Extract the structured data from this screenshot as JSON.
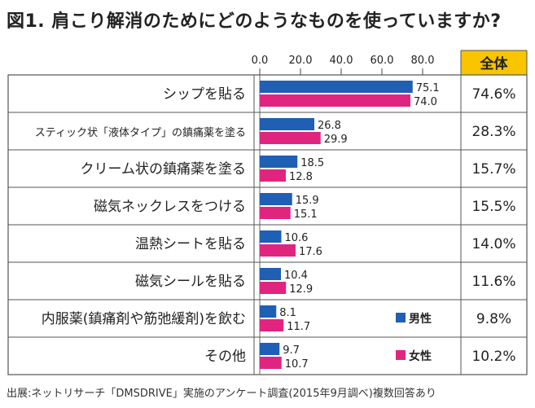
{
  "title": "図1. 肩こり解消のためにどのようなものを使っていますか?",
  "source": "出展:ネットリサーチ「DMSDRIVE」実施のアンケート調査(2015年9月調べ)複数回答あり",
  "total_header": "全体",
  "colors": {
    "male": "#1f5fb4",
    "female": "#e0257f",
    "header_bg": "#f9c400",
    "border": "#555555"
  },
  "chart_data": {
    "type": "bar",
    "orientation": "horizontal",
    "title": "図1. 肩こり解消のためにどのようなものを使っていますか?",
    "xlim": [
      0,
      80
    ],
    "ticks": [
      "0.0",
      "20.0",
      "40.0",
      "60.0",
      "80.0"
    ],
    "categories": [
      "シップを貼る",
      "スティック状「液体タイプ」の鎮痛薬を塗る",
      "クリーム状の鎮痛薬を塗る",
      "磁気ネックレスをつける",
      "温熱シートを貼る",
      "磁気シールを貼る",
      "内服薬(鎮痛剤や筋弛緩剤)を飲む",
      "その他"
    ],
    "series": [
      {
        "name": "男性",
        "values": [
          75.1,
          26.8,
          18.5,
          15.9,
          10.6,
          10.4,
          8.1,
          9.7
        ]
      },
      {
        "name": "女性",
        "values": [
          74.0,
          29.9,
          12.8,
          15.1,
          17.6,
          12.9,
          11.7,
          10.7
        ]
      }
    ],
    "total": [
      "74.6%",
      "28.3%",
      "15.7%",
      "15.5%",
      "14.0%",
      "11.6%",
      "9.8%",
      "10.2%"
    ],
    "legend_position": "inside-right"
  }
}
